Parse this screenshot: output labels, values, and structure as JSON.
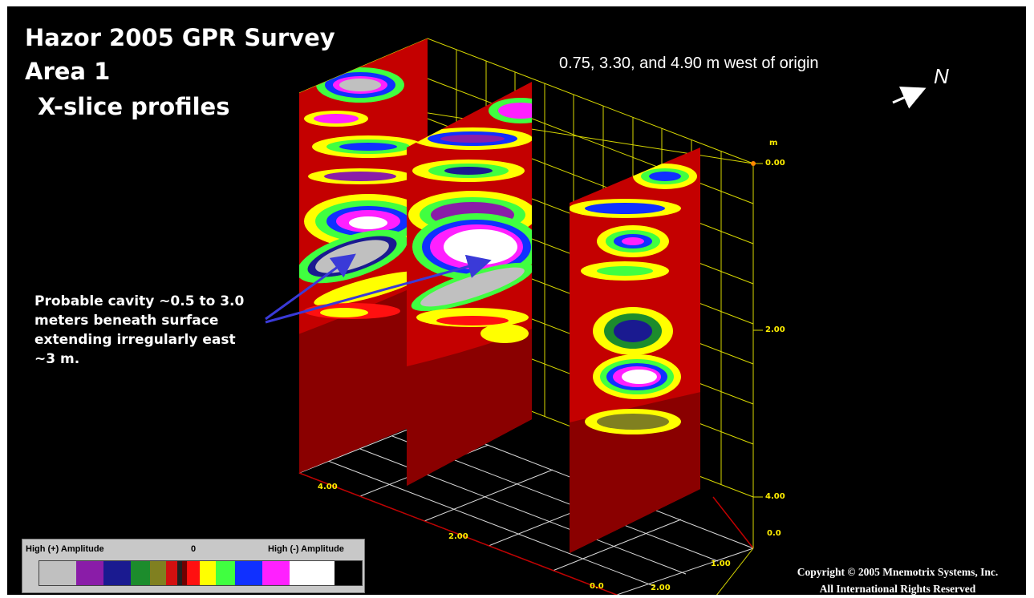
{
  "title_lines": [
    "Hazor 2005 GPR Survey",
    "Area 1",
    "X-slice profiles"
  ],
  "subtitle": "0.75, 3.30, and 4.90 m west of origin",
  "north_label": "N",
  "north_arrow_icon": "arrow-northeast-icon",
  "annotation": {
    "lines": [
      "Probable cavity ~0.5 to 3.0",
      "meters beneath surface",
      "extending irregularly east",
      "~3 m."
    ]
  },
  "axis": {
    "depth_unit": "m",
    "depth_ticks": [
      "0.00",
      "2.00",
      "4.00"
    ],
    "floor_ticks_left": [
      "4.00",
      "2.00",
      "0.0"
    ],
    "floor_ticks_right": [
      "0.0",
      "1.00",
      "2.00"
    ]
  },
  "legend": {
    "left_label": "High (+) Amplitude",
    "center_label": "0",
    "right_label": "High (-) Amplitude",
    "colors": [
      "#c0c0c0",
      "#8a1ca8",
      "#1a1a90",
      "#1c8c2c",
      "#808020",
      "#d21010",
      "#202020",
      "#700000",
      "#ff1010",
      "#ffff00",
      "#40ff40",
      "#1030ff",
      "#ff20ff",
      "#ffffff"
    ]
  },
  "copyright": [
    "Copyright © 2005 Mnemotrix Systems, Inc.",
    "All International Rights Reserved"
  ],
  "colors": {
    "background": "#000000",
    "grid": "#d8d800",
    "floor_grid": "#ffffff",
    "label": "#ffee00",
    "annotation_arrow": "#3030c0"
  }
}
